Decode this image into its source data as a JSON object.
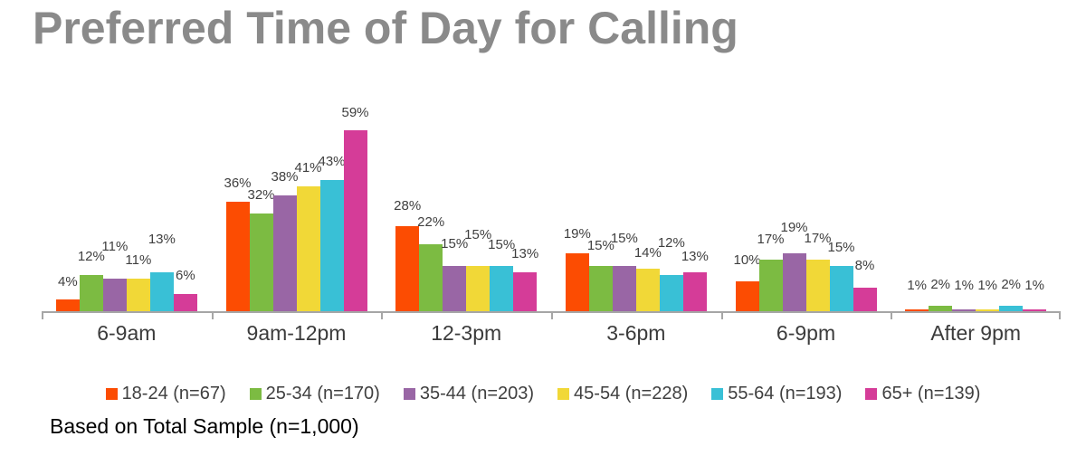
{
  "title": {
    "text": "Preferred Time of Day for Calling",
    "color": "#8a8a8a"
  },
  "footer": {
    "text": "Based on Total Sample (n=1,000)"
  },
  "axis": {
    "color": "#a6a6a6"
  },
  "chart_data": {
    "type": "bar",
    "title": "Preferred Time of Day for Calling",
    "categories": [
      "6-9am",
      "9am-12pm",
      "12-3pm",
      "3-6pm",
      "6-9pm",
      "After 9pm"
    ],
    "series": [
      {
        "name": "18-24 (n=67)",
        "color": "#fc4c02",
        "values": [
          4,
          36,
          28,
          19,
          10,
          1
        ]
      },
      {
        "name": "25-34 (n=170)",
        "color": "#7cbb42",
        "values": [
          12,
          32,
          22,
          15,
          17,
          2
        ]
      },
      {
        "name": "35-44 (n=203)",
        "color": "#9966a5",
        "values": [
          11,
          38,
          15,
          15,
          19,
          1
        ]
      },
      {
        "name": "45-54 (n=228)",
        "color": "#f1d837",
        "values": [
          11,
          41,
          15,
          14,
          17,
          1
        ]
      },
      {
        "name": "55-64 (n=193)",
        "color": "#39c0d6",
        "values": [
          13,
          43,
          15,
          12,
          15,
          2
        ]
      },
      {
        "name": "65+ (n=139)",
        "color": "#d53c98",
        "values": [
          6,
          59,
          13,
          13,
          8,
          1
        ]
      }
    ],
    "value_suffix": "%",
    "ylim": [
      0,
      65
    ],
    "grid": false,
    "data_labels": "outside-end",
    "legend_position": "bottom",
    "label_dy": [
      [
        0,
        0,
        15,
        0,
        16,
        0
      ],
      [
        0,
        0,
        0,
        0,
        0,
        0
      ],
      [
        2,
        4,
        4,
        14,
        3,
        0
      ],
      [
        2,
        2,
        10,
        -2,
        15,
        -3
      ],
      [
        3,
        2,
        9,
        3,
        0,
        4
      ],
      [
        6,
        3,
        6,
        6,
        3,
        6
      ]
    ]
  }
}
